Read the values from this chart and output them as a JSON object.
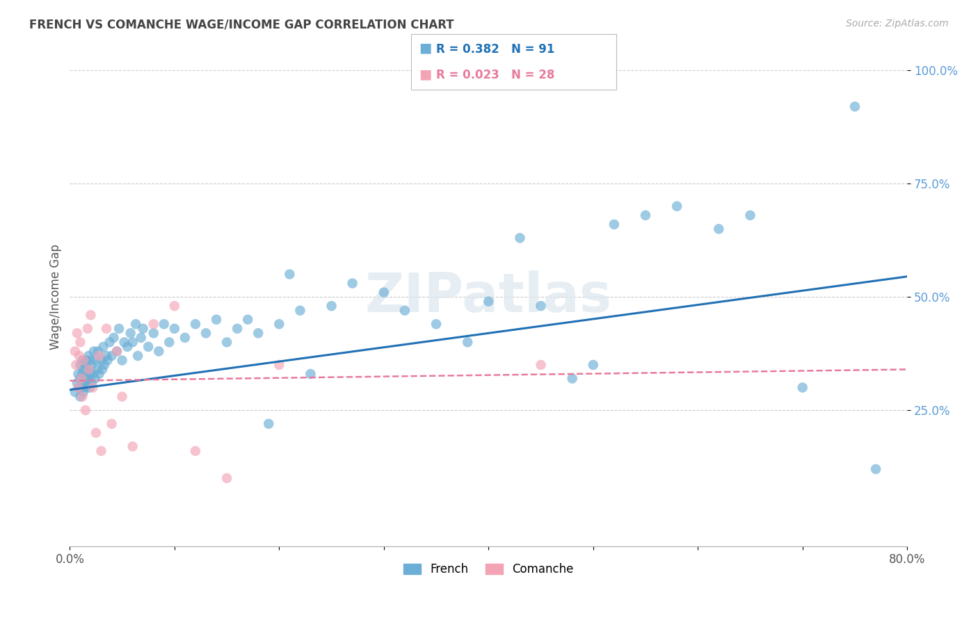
{
  "title": "FRENCH VS COMANCHE WAGE/INCOME GAP CORRELATION CHART",
  "source": "Source: ZipAtlas.com",
  "xlabel": "",
  "ylabel": "Wage/Income Gap",
  "xlim": [
    0.0,
    0.8
  ],
  "ylim": [
    -0.05,
    1.05
  ],
  "yticks": [
    0.25,
    0.5,
    0.75,
    1.0
  ],
  "ytick_labels": [
    "25.0%",
    "50.0%",
    "75.0%",
    "100.0%"
  ],
  "xticks": [
    0.0,
    0.1,
    0.2,
    0.3,
    0.4,
    0.5,
    0.6,
    0.7,
    0.8
  ],
  "xtick_labels": [
    "0.0%",
    "",
    "",
    "",
    "",
    "",
    "",
    "",
    "80.0%"
  ],
  "french_R": 0.382,
  "french_N": 91,
  "comanche_R": 0.023,
  "comanche_N": 28,
  "french_color": "#6baed6",
  "comanche_color": "#f4a3b5",
  "french_line_color": "#2171b5",
  "comanche_line_color": "#e87a9a",
  "background_color": "#ffffff",
  "grid_color": "#cccccc",
  "axis_color": "#cccccc",
  "title_color": "#444444",
  "legend_text_color_french": "#2171b5",
  "legend_text_color_comanche": "#e87a9a",
  "watermark": "ZIPatlas",
  "french_x": [
    0.005,
    0.007,
    0.008,
    0.009,
    0.01,
    0.01,
    0.01,
    0.011,
    0.012,
    0.012,
    0.013,
    0.013,
    0.014,
    0.015,
    0.015,
    0.016,
    0.016,
    0.017,
    0.017,
    0.018,
    0.018,
    0.019,
    0.02,
    0.02,
    0.021,
    0.021,
    0.022,
    0.023,
    0.024,
    0.025,
    0.026,
    0.027,
    0.028,
    0.03,
    0.031,
    0.032,
    0.033,
    0.035,
    0.036,
    0.038,
    0.04,
    0.042,
    0.045,
    0.047,
    0.05,
    0.052,
    0.055,
    0.058,
    0.06,
    0.063,
    0.065,
    0.068,
    0.07,
    0.075,
    0.08,
    0.085,
    0.09,
    0.095,
    0.1,
    0.11,
    0.12,
    0.13,
    0.14,
    0.15,
    0.16,
    0.17,
    0.18,
    0.19,
    0.2,
    0.21,
    0.22,
    0.23,
    0.25,
    0.27,
    0.3,
    0.32,
    0.35,
    0.38,
    0.4,
    0.43,
    0.45,
    0.48,
    0.5,
    0.52,
    0.55,
    0.58,
    0.62,
    0.65,
    0.7,
    0.75,
    0.77
  ],
  "french_y": [
    0.29,
    0.31,
    0.33,
    0.3,
    0.28,
    0.32,
    0.35,
    0.3,
    0.33,
    0.36,
    0.29,
    0.34,
    0.31,
    0.3,
    0.35,
    0.32,
    0.36,
    0.31,
    0.34,
    0.33,
    0.37,
    0.3,
    0.33,
    0.36,
    0.31,
    0.35,
    0.33,
    0.38,
    0.32,
    0.36,
    0.34,
    0.38,
    0.33,
    0.36,
    0.34,
    0.39,
    0.35,
    0.37,
    0.36,
    0.4,
    0.37,
    0.41,
    0.38,
    0.43,
    0.36,
    0.4,
    0.39,
    0.42,
    0.4,
    0.44,
    0.37,
    0.41,
    0.43,
    0.39,
    0.42,
    0.38,
    0.44,
    0.4,
    0.43,
    0.41,
    0.44,
    0.42,
    0.45,
    0.4,
    0.43,
    0.45,
    0.42,
    0.22,
    0.44,
    0.55,
    0.47,
    0.33,
    0.48,
    0.53,
    0.51,
    0.47,
    0.44,
    0.4,
    0.49,
    0.63,
    0.48,
    0.32,
    0.35,
    0.66,
    0.68,
    0.7,
    0.65,
    0.68,
    0.3,
    0.92,
    0.12
  ],
  "comanche_x": [
    0.005,
    0.006,
    0.007,
    0.008,
    0.009,
    0.01,
    0.011,
    0.012,
    0.013,
    0.015,
    0.017,
    0.018,
    0.02,
    0.022,
    0.025,
    0.028,
    0.03,
    0.035,
    0.04,
    0.045,
    0.05,
    0.06,
    0.08,
    0.1,
    0.12,
    0.15,
    0.2,
    0.45
  ],
  "comanche_y": [
    0.38,
    0.35,
    0.42,
    0.3,
    0.37,
    0.4,
    0.32,
    0.28,
    0.36,
    0.25,
    0.43,
    0.34,
    0.46,
    0.3,
    0.2,
    0.37,
    0.16,
    0.43,
    0.22,
    0.38,
    0.28,
    0.17,
    0.44,
    0.48,
    0.16,
    0.1,
    0.35,
    0.35
  ],
  "french_trend_x": [
    0.0,
    0.8
  ],
  "french_trend_y": [
    0.295,
    0.545
  ],
  "comanche_trend_x": [
    0.0,
    0.8
  ],
  "comanche_trend_y": [
    0.315,
    0.34
  ]
}
